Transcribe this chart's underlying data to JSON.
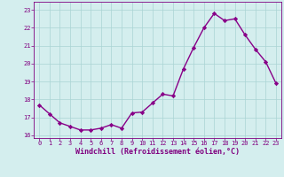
{
  "x": [
    0,
    1,
    2,
    3,
    4,
    5,
    6,
    7,
    8,
    9,
    10,
    11,
    12,
    13,
    14,
    15,
    16,
    17,
    18,
    19,
    20,
    21,
    22,
    23
  ],
  "y": [
    17.7,
    17.2,
    16.7,
    16.5,
    16.3,
    16.3,
    16.4,
    16.6,
    16.4,
    17.25,
    17.3,
    17.8,
    18.3,
    18.2,
    19.7,
    20.9,
    22.0,
    22.8,
    22.4,
    22.5,
    21.6,
    20.8,
    20.1,
    18.9
  ],
  "line_color": "#880088",
  "marker": "D",
  "marker_size": 2.2,
  "linewidth": 1.0,
  "xlabel": "Windchill (Refroidissement éolien,°C)",
  "xlim": [
    -0.5,
    23.5
  ],
  "ylim": [
    15.85,
    23.45
  ],
  "yticks": [
    16,
    17,
    18,
    19,
    20,
    21,
    22,
    23
  ],
  "xticks": [
    0,
    1,
    2,
    3,
    4,
    5,
    6,
    7,
    8,
    9,
    10,
    11,
    12,
    13,
    14,
    15,
    16,
    17,
    18,
    19,
    20,
    21,
    22,
    23
  ],
  "bg_color": "#d4eeee",
  "grid_color": "#aad4d4",
  "label_color": "#800080",
  "tick_fontsize": 5.0,
  "xlabel_fontsize": 6.0
}
